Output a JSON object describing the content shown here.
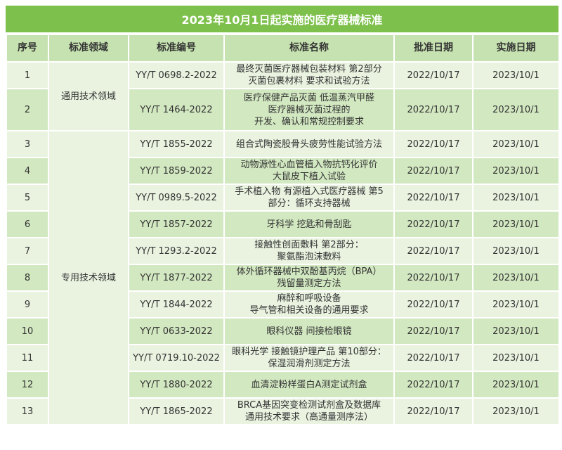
{
  "title": "2023年10月1日起实施的医疗器械标准",
  "columns": [
    "序号",
    "标准领域",
    "标准编号",
    "标准名称",
    "批准日期",
    "实施日期"
  ],
  "domains": [
    "通用技术领域",
    "专用技术领域"
  ],
  "rows": [
    {
      "no": "1",
      "code": "YY/T 0698.2-2022",
      "name": [
        "最终灭菌医疗器械包装材料 第2部分",
        "灭菌包裹材料 要求和试验方法"
      ],
      "approve": "2022/10/17",
      "effective": "2023/10/1"
    },
    {
      "no": "2",
      "code": "YY/T 1464-2022",
      "name": [
        "医疗保健产品灭菌 低温蒸汽甲醛",
        "医疗器械灭菌过程的",
        "开发、确认和常规控制要求"
      ],
      "approve": "2022/10/17",
      "effective": "2023/10/1"
    },
    {
      "no": "3",
      "code": "YY/T 1855-2022",
      "name": [
        "组合式陶瓷股骨头疲劳性能试验方法"
      ],
      "approve": "2022/10/17",
      "effective": "2023/10/1"
    },
    {
      "no": "4",
      "code": "YY/T 1859-2022",
      "name": [
        "动物源性心血管植入物抗钙化评价",
        "大鼠皮下植入试验"
      ],
      "approve": "2022/10/17",
      "effective": "2023/10/1"
    },
    {
      "no": "5",
      "code": "YY/T 0989.5-2022",
      "name": [
        "手术植入物 有源植入式医疗器械 第5",
        "部分：循环支持器械"
      ],
      "approve": "2022/10/17",
      "effective": "2023/10/1"
    },
    {
      "no": "6",
      "code": "YY/T 1857-2022",
      "name": [
        "牙科学 挖匙和骨刮匙"
      ],
      "approve": "2022/10/17",
      "effective": "2023/10/1"
    },
    {
      "no": "7",
      "code": "YY/T 1293.2-2022",
      "name": [
        "接触性创面敷料 第2部分：",
        "聚氨酯泡沫敷料"
      ],
      "approve": "2022/10/17",
      "effective": "2023/10/1"
    },
    {
      "no": "8",
      "code": "YY/T 1877-2022",
      "name": [
        "体外循环器械中双酚基丙烷（BPA）",
        "残留量测定方法"
      ],
      "approve": "2022/10/17",
      "effective": "2023/10/1"
    },
    {
      "no": "9",
      "code": "YY/T 1844-2022",
      "name": [
        "麻醉和呼吸设备",
        "导气管和相关设备的通用要求"
      ],
      "approve": "2022/10/17",
      "effective": "2023/10/1"
    },
    {
      "no": "10",
      "code": "YY/T 0633-2022",
      "name": [
        "眼科仪器 间接检眼镜"
      ],
      "approve": "2022/10/17",
      "effective": "2023/10/1"
    },
    {
      "no": "11",
      "code": "YY/T 0719.10-2022",
      "name": [
        "眼科光学 接触镜护理产品 第10部分：",
        "保湿润滑剂测定方法"
      ],
      "approve": "2022/10/17",
      "effective": "2023/10/1"
    },
    {
      "no": "12",
      "code": "YY/T 1880-2022",
      "name": [
        "血清淀粉样蛋白A测定试剂盒"
      ],
      "approve": "2022/10/17",
      "effective": "2023/10/1"
    },
    {
      "no": "13",
      "code": "YY/T 1865-2022",
      "name": [
        "BRCA基因突变检测试剂盒及数据库",
        "通用技术要求（高通量测序法）"
      ],
      "approve": "2022/10/17",
      "effective": "2023/10/1"
    }
  ],
  "colors": {
    "title_bg": "#7dc04b",
    "header_bg": "#c6e2b0",
    "row_light": "#e9f3e0",
    "row_dark": "#d2e8c1"
  }
}
